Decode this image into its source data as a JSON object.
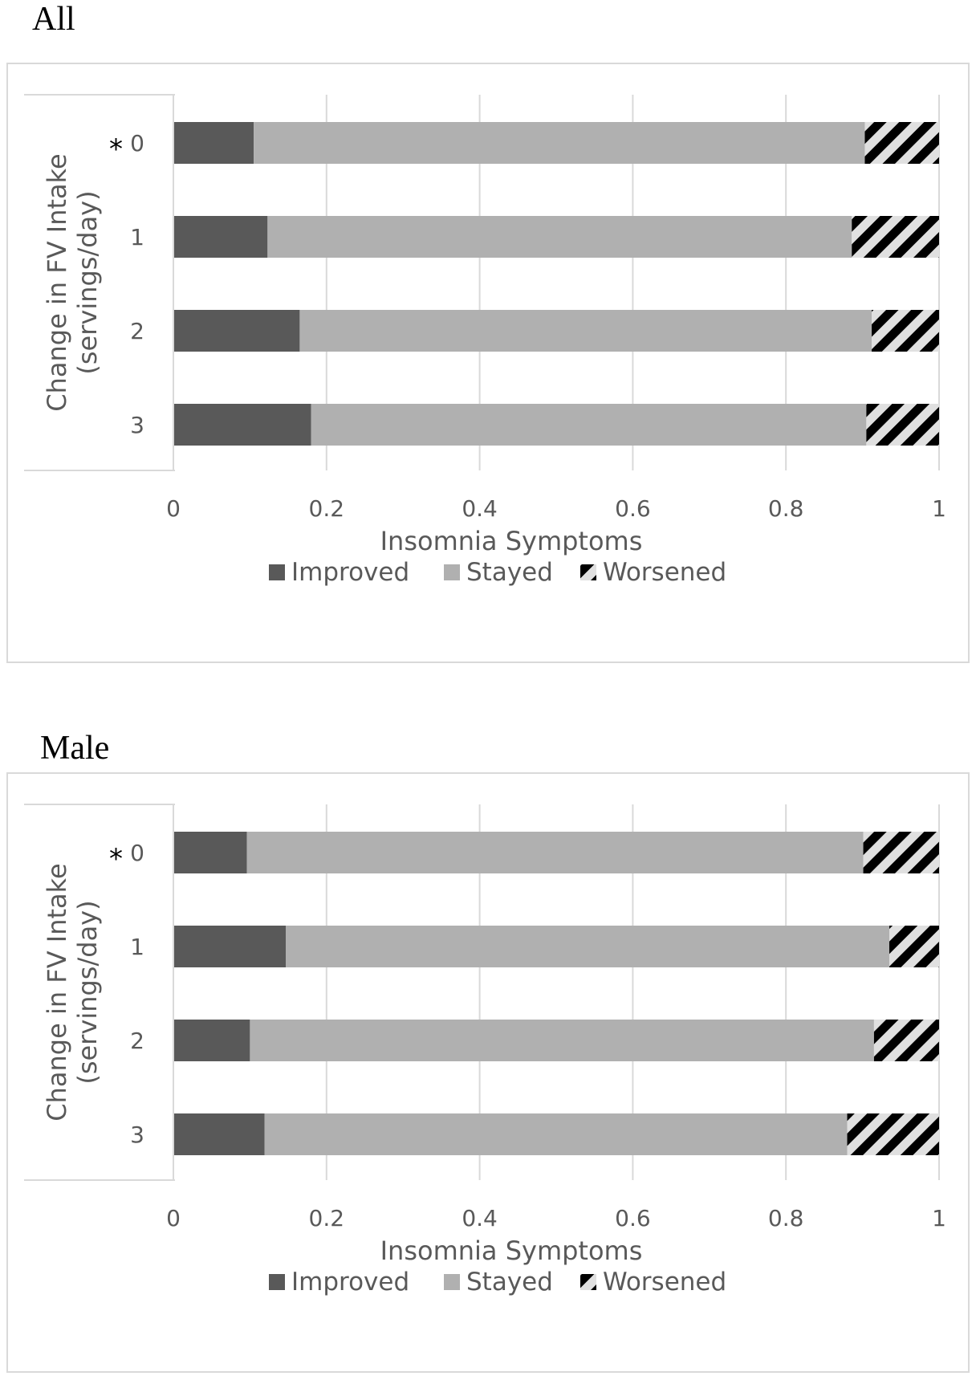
{
  "colors": {
    "improved": "#595959",
    "stayed": "#b0b0b0",
    "worsened_fg": "#000000",
    "worsened_bg": "#e0e0e0",
    "grid": "#d9d9d9",
    "text": "#595959"
  },
  "chart_data": [
    {
      "type": "bar",
      "stacked": true,
      "orientation": "horizontal",
      "title": "All",
      "categories": [
        "0",
        "1",
        "2",
        "3"
      ],
      "category_marks": [
        "*",
        "",
        "",
        ""
      ],
      "series": [
        {
          "name": "Improved",
          "values": [
            0.105,
            0.123,
            0.165,
            0.18
          ]
        },
        {
          "name": "Stayed",
          "values": [
            0.798,
            0.763,
            0.747,
            0.725
          ]
        },
        {
          "name": "Worsened",
          "values": [
            0.097,
            0.114,
            0.088,
            0.095
          ]
        }
      ],
      "xlabel": "Insomnia Symptoms",
      "ylabel": [
        "Change in FV Intake",
        "(servings/day)"
      ],
      "xlim": [
        0,
        1
      ],
      "xticks": [
        "0",
        "0.2",
        "0.4",
        "0.6",
        "0.8",
        "1"
      ],
      "legend": "bottom",
      "grid": true
    },
    {
      "type": "bar",
      "stacked": true,
      "orientation": "horizontal",
      "title": "Male",
      "categories": [
        "0",
        "1",
        "2",
        "3"
      ],
      "category_marks": [
        "*",
        "",
        "",
        ""
      ],
      "series": [
        {
          "name": "Improved",
          "values": [
            0.096,
            0.147,
            0.1,
            0.119
          ]
        },
        {
          "name": "Stayed",
          "values": [
            0.805,
            0.788,
            0.815,
            0.761
          ]
        },
        {
          "name": "Worsened",
          "values": [
            0.099,
            0.065,
            0.085,
            0.12
          ]
        }
      ],
      "xlabel": "Insomnia Symptoms",
      "ylabel": [
        "Change in FV Intake",
        "(servings/day)"
      ],
      "xlim": [
        0,
        1
      ],
      "xticks": [
        "0",
        "0.2",
        "0.4",
        "0.6",
        "0.8",
        "1"
      ],
      "legend": "bottom",
      "grid": true
    }
  ]
}
